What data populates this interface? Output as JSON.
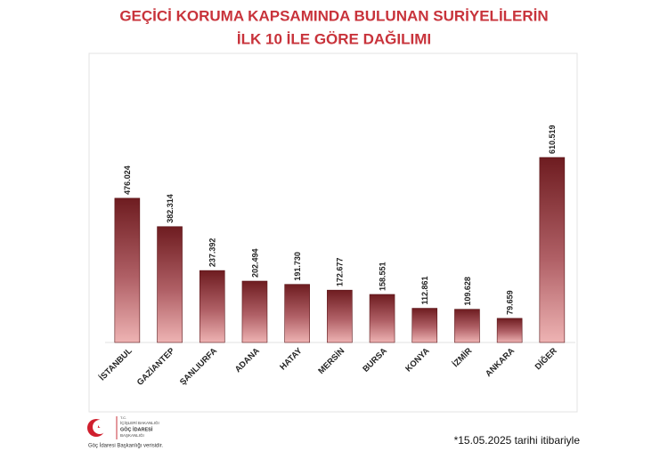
{
  "chart_data": {
    "type": "bar",
    "title": [
      "GEÇİCİ KORUMA KAPSAMINDA BULUNAN SURİYELİLERİN",
      "İLK 10 İLE GÖRE DAĞILIMI"
    ],
    "categories": [
      "İSTANBUL",
      "GAZİANTEP",
      "ŞANLIURFA",
      "ADANA",
      "HATAY",
      "MERSİN",
      "BURSA",
      "KONYA",
      "İZMİR",
      "ANKARA",
      "DİĞER"
    ],
    "values": [
      476024,
      382314,
      237392,
      202494,
      191730,
      172677,
      158551,
      112861,
      109628,
      79659,
      610519
    ],
    "value_labels": [
      "476.024",
      "382.314",
      "237.392",
      "202.494",
      "191.730",
      "172.677",
      "158.551",
      "112.861",
      "109.628",
      "79.659",
      "610.519"
    ],
    "color": "#6e1c20"
  },
  "logo": {
    "lines": [
      "T.C.",
      "İÇİŞLERİ BAKANLIĞI",
      "GÖÇ İDARESİ",
      "BAŞKANLIĞI"
    ],
    "caption": "Göç İdaresi Başkanlığı verisidir."
  },
  "footnote": "*15.05.2025 tarihi itibariyle"
}
